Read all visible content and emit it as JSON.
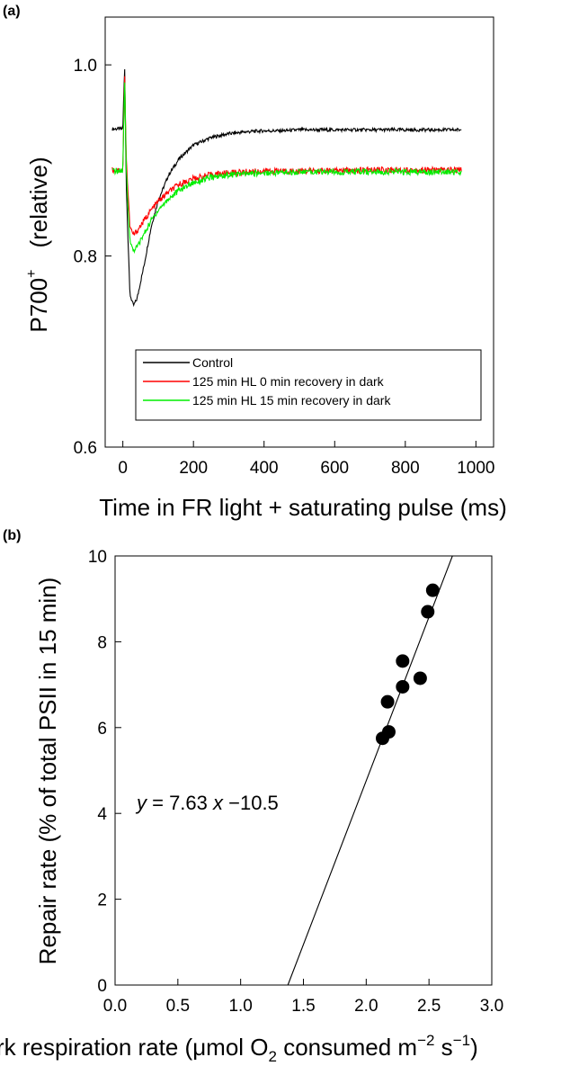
{
  "chart_data": [
    {
      "panel": "(a)",
      "type": "line",
      "xlabel": "Time in FR light + saturating pulse  (ms)",
      "ylabel_main": "P700",
      "ylabel_sup": "+",
      "ylabel_note": "(relative)",
      "xlim": [
        -50,
        1050
      ],
      "ylim": [
        0.6,
        1.05
      ],
      "x_ticks": [
        0,
        200,
        400,
        600,
        800,
        1000
      ],
      "x_tick_labels": [
        "0",
        "200",
        "400",
        "600",
        "800",
        "1000"
      ],
      "y_ticks": [
        0.6,
        0.8,
        1.0
      ],
      "y_tick_labels": [
        "0.6",
        "0.8",
        "1.0"
      ],
      "legend_position": "bottom-left",
      "series": [
        {
          "name": "Control",
          "color": "#000000",
          "x": [
            -30,
            0,
            5,
            10,
            20,
            30,
            40,
            60,
            80,
            100,
            130,
            160,
            200,
            250,
            300,
            350,
            400,
            450,
            500,
            600,
            700,
            800,
            900,
            960
          ],
          "y": [
            0.933,
            0.933,
            1.0,
            0.87,
            0.76,
            0.748,
            0.755,
            0.79,
            0.83,
            0.858,
            0.885,
            0.902,
            0.916,
            0.924,
            0.928,
            0.93,
            0.931,
            0.931,
            0.932,
            0.932,
            0.932,
            0.932,
            0.932,
            0.932
          ]
        },
        {
          "name": "125 min HL 0 min recovery in dark",
          "color": "#ff0000",
          "x": [
            -30,
            0,
            5,
            10,
            20,
            30,
            40,
            60,
            80,
            100,
            130,
            160,
            200,
            250,
            300,
            400,
            500,
            600,
            700,
            800,
            900,
            960
          ],
          "y": [
            0.89,
            0.89,
            0.99,
            0.9,
            0.83,
            0.822,
            0.826,
            0.837,
            0.848,
            0.857,
            0.867,
            0.875,
            0.881,
            0.885,
            0.887,
            0.889,
            0.889,
            0.889,
            0.89,
            0.89,
            0.89,
            0.89
          ]
        },
        {
          "name": "125 min HL 15 min recovery in dark",
          "color": "#00ee00",
          "x": [
            -30,
            0,
            5,
            10,
            20,
            30,
            40,
            60,
            80,
            100,
            130,
            160,
            200,
            250,
            300,
            400,
            500,
            600,
            700,
            800,
            900,
            960
          ],
          "y": [
            0.889,
            0.889,
            0.985,
            0.89,
            0.815,
            0.806,
            0.809,
            0.823,
            0.837,
            0.848,
            0.86,
            0.869,
            0.877,
            0.882,
            0.885,
            0.887,
            0.888,
            0.888,
            0.888,
            0.888,
            0.888,
            0.888
          ]
        }
      ]
    },
    {
      "panel": "(b)",
      "type": "scatter",
      "xlabel_parts": [
        "rk respiration rate (",
        "μ",
        "mol O",
        "2",
        " consumed m",
        "−2",
        " s",
        "−1",
        ")"
      ],
      "ylabel": "Repair rate (% of total PSII in 15 min)",
      "xlim": [
        0.0,
        3.0
      ],
      "ylim": [
        0,
        10
      ],
      "x_ticks": [
        0.0,
        0.5,
        1.0,
        1.5,
        2.0,
        2.5,
        3.0
      ],
      "x_tick_labels": [
        "0.0",
        "0.5",
        "1.0",
        "1.5",
        "2.0",
        "2.5",
        "3.0"
      ],
      "y_ticks": [
        0,
        2,
        4,
        6,
        8,
        10
      ],
      "y_tick_labels": [
        "0",
        "2",
        "4",
        "6",
        "8",
        "10"
      ],
      "points": {
        "x": [
          2.13,
          2.18,
          2.17,
          2.29,
          2.29,
          2.43,
          2.49,
          2.53
        ],
        "y": [
          5.75,
          5.9,
          6.6,
          6.95,
          7.55,
          7.15,
          8.7,
          9.2
        ]
      },
      "fit": {
        "slope": 7.63,
        "intercept": -10.5
      },
      "equation_parts": [
        "y",
        " = 7.63 ",
        "x",
        " −10.5"
      ]
    }
  ]
}
